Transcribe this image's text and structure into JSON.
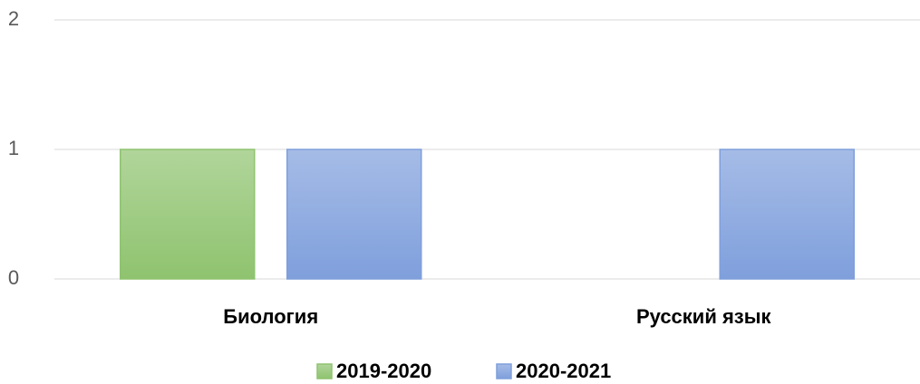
{
  "chart_data": {
    "type": "bar",
    "categories": [
      "Биология",
      "Русский язык"
    ],
    "series": [
      {
        "name": "2019-2020",
        "color": "#8fc36f",
        "values": [
          1,
          0
        ]
      },
      {
        "name": "2020-2021",
        "color": "#7f9fdc",
        "values": [
          1,
          1
        ]
      }
    ],
    "ylim": [
      0,
      2
    ],
    "yticks": [
      0,
      1,
      2
    ],
    "grid": true,
    "legend": "bottom"
  }
}
